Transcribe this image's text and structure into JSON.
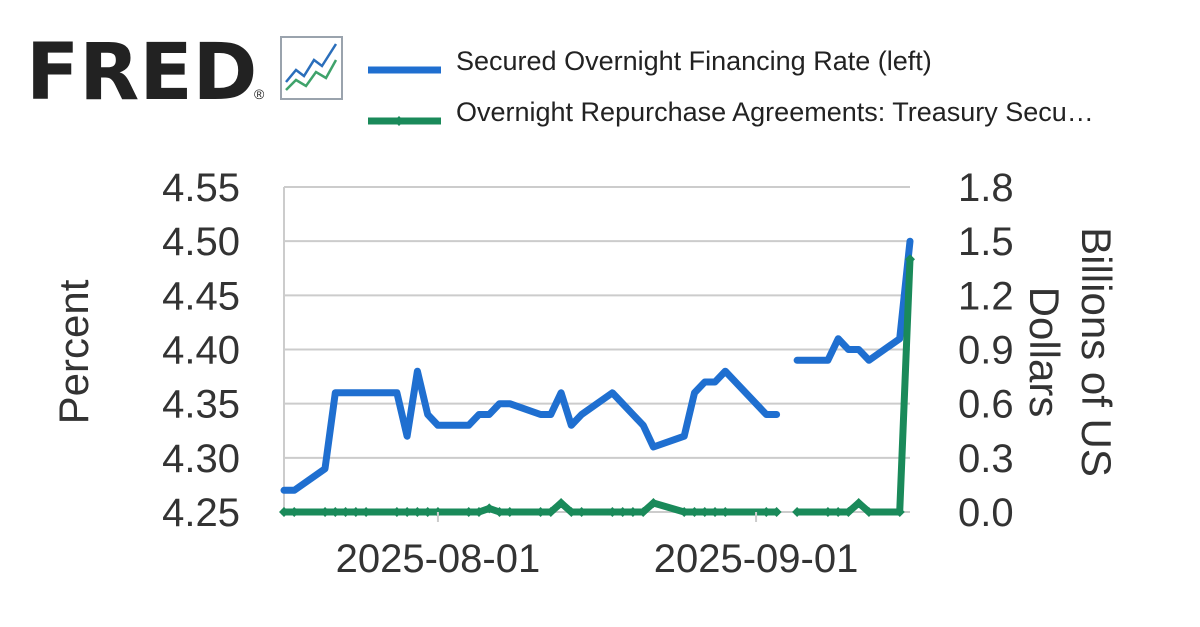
{
  "brand": {
    "name": "FRED",
    "registered_mark": "®",
    "icon": "line-chart-icon"
  },
  "chart_data": {
    "type": "line",
    "x_ticks": [
      "2025-08-01",
      "2025-09-01"
    ],
    "y_left": {
      "label": "Percent",
      "ticks": [
        "4.55",
        "4.50",
        "4.45",
        "4.40",
        "4.35",
        "4.30",
        "4.25"
      ],
      "ylim": [
        4.25,
        4.55
      ]
    },
    "y_right": {
      "label": "Billions of US Dollars",
      "label_lines": [
        "Billions of US",
        "Dollars"
      ],
      "ticks": [
        "1.8",
        "1.5",
        "1.2",
        "0.9",
        "0.6",
        "0.3",
        "0.0"
      ],
      "ylim": [
        0.0,
        1.8
      ]
    },
    "grid": true,
    "legend_position": "top",
    "series": [
      {
        "name": "Secured Overnight Financing Rate (left)",
        "axis": "left",
        "color": "#1f6fd0",
        "markers": false,
        "x": [
          "2025-07-17",
          "2025-07-18",
          "2025-07-21",
          "2025-07-22",
          "2025-07-23",
          "2025-07-24",
          "2025-07-25",
          "2025-07-28",
          "2025-07-29",
          "2025-07-30",
          "2025-07-31",
          "2025-08-01",
          "2025-08-04",
          "2025-08-05",
          "2025-08-06",
          "2025-08-07",
          "2025-08-08",
          "2025-08-11",
          "2025-08-12",
          "2025-08-13",
          "2025-08-14",
          "2025-08-15",
          "2025-08-18",
          "2025-08-19",
          "2025-08-20",
          "2025-08-21",
          "2025-08-22",
          "2025-08-25",
          "2025-08-26",
          "2025-08-27",
          "2025-08-28",
          "2025-08-29",
          "2025-09-02",
          "2025-09-03",
          "2025-09-04",
          "2025-09-05",
          "2025-09-08",
          "2025-09-09",
          "2025-09-10",
          "2025-09-11",
          "2025-09-12",
          "2025-09-15",
          "2025-09-16"
        ],
        "y": [
          4.27,
          4.27,
          4.29,
          4.36,
          4.36,
          4.36,
          4.36,
          4.36,
          4.32,
          4.38,
          4.34,
          4.33,
          4.33,
          4.34,
          4.34,
          4.35,
          4.35,
          4.34,
          4.34,
          4.36,
          4.33,
          4.34,
          4.36,
          4.35,
          4.34,
          4.33,
          4.31,
          4.32,
          4.36,
          4.37,
          4.37,
          4.38,
          4.34,
          4.34,
          null,
          4.39,
          4.39,
          4.41,
          4.4,
          4.4,
          4.39,
          4.41,
          4.5
        ]
      },
      {
        "name": "Overnight Repurchase Agreements: Treasury Secu…",
        "axis": "right",
        "color": "#1a8a5a",
        "markers": true,
        "x": [
          "2025-07-17",
          "2025-07-18",
          "2025-07-21",
          "2025-07-22",
          "2025-07-23",
          "2025-07-24",
          "2025-07-25",
          "2025-07-28",
          "2025-07-29",
          "2025-07-30",
          "2025-07-31",
          "2025-08-01",
          "2025-08-04",
          "2025-08-05",
          "2025-08-06",
          "2025-08-07",
          "2025-08-08",
          "2025-08-11",
          "2025-08-12",
          "2025-08-13",
          "2025-08-14",
          "2025-08-15",
          "2025-08-18",
          "2025-08-19",
          "2025-08-20",
          "2025-08-21",
          "2025-08-22",
          "2025-08-25",
          "2025-08-26",
          "2025-08-27",
          "2025-08-28",
          "2025-08-29",
          "2025-09-02",
          "2025-09-03",
          "2025-09-04",
          "2025-09-05",
          "2025-09-08",
          "2025-09-09",
          "2025-09-10",
          "2025-09-11",
          "2025-09-12",
          "2025-09-15",
          "2025-09-16"
        ],
        "y": [
          0,
          0,
          0,
          0,
          0,
          0,
          0,
          0,
          0,
          0,
          0,
          0,
          0,
          0,
          0.02,
          0,
          0,
          0,
          0,
          0.05,
          0,
          0,
          0,
          0,
          0,
          0,
          0.05,
          0,
          0,
          0,
          0,
          0,
          0,
          0,
          null,
          0,
          0,
          0,
          0,
          0.05,
          0,
          0,
          1.4
        ]
      }
    ]
  }
}
